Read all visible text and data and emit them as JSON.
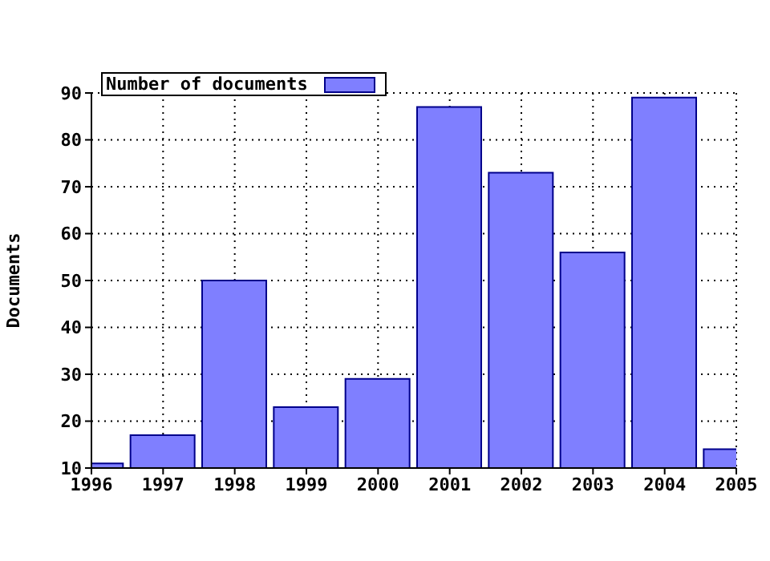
{
  "chart_data": {
    "type": "bar",
    "ylabel": "Documents",
    "x": [
      1996,
      1997,
      1998,
      1999,
      2000,
      2001,
      2002,
      2003,
      2004,
      2005
    ],
    "series": [
      {
        "name": "Number of documents",
        "color": "#7f7fff",
        "values": [
          11,
          17,
          50,
          23,
          29,
          87,
          73,
          56,
          89,
          14
        ]
      }
    ],
    "xlim": [
      1996,
      2005
    ],
    "xticks": [
      1996,
      1997,
      1998,
      1999,
      2000,
      2001,
      2002,
      2003,
      2004,
      2005
    ],
    "ylim": [
      10,
      90
    ],
    "yticks": [
      10,
      20,
      30,
      40,
      50,
      60,
      70,
      80,
      90
    ],
    "grid": true,
    "legend": "top left"
  }
}
